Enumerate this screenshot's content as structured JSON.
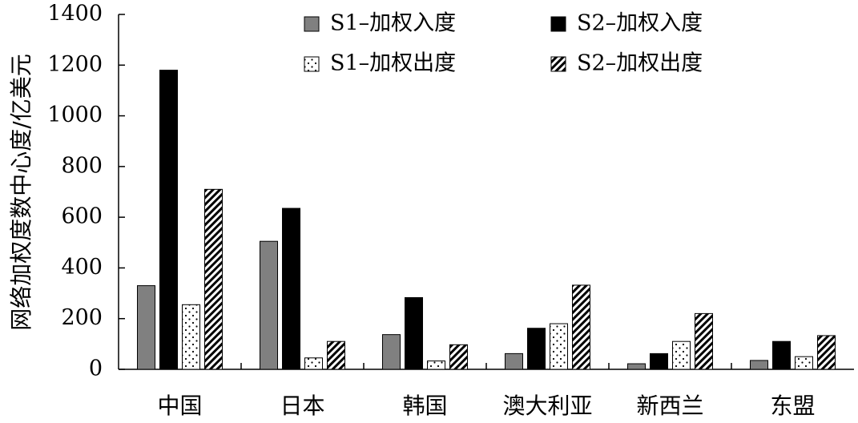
{
  "chart_data": {
    "type": "bar",
    "title": "",
    "xlabel": "",
    "ylabel": "网络加权度数中心度/亿美元",
    "ylim": [
      0,
      1400
    ],
    "yticks": [
      0,
      200,
      400,
      600,
      800,
      1000,
      1200,
      1400
    ],
    "grid": false,
    "legend_position": "top",
    "categories": [
      "中国",
      "日本",
      "韩国",
      "澳大利亚",
      "新西兰",
      "东盟"
    ],
    "series": [
      {
        "name": "S1–加权入度",
        "pattern": "solid-gray",
        "color": "#808080",
        "values": [
          330,
          505,
          137,
          62,
          22,
          35
        ]
      },
      {
        "name": "S2–加权入度",
        "pattern": "solid-black",
        "color": "#000000",
        "values": [
          1180,
          635,
          283,
          162,
          62,
          110
        ]
      },
      {
        "name": "S1–加权出度",
        "pattern": "dots",
        "color": "#ffffff",
        "values": [
          255,
          45,
          33,
          180,
          110,
          50
        ]
      },
      {
        "name": "S2–加权出度",
        "pattern": "diagonal-hatch",
        "color": "#000000",
        "values": [
          710,
          110,
          97,
          332,
          220,
          133
        ]
      }
    ]
  }
}
